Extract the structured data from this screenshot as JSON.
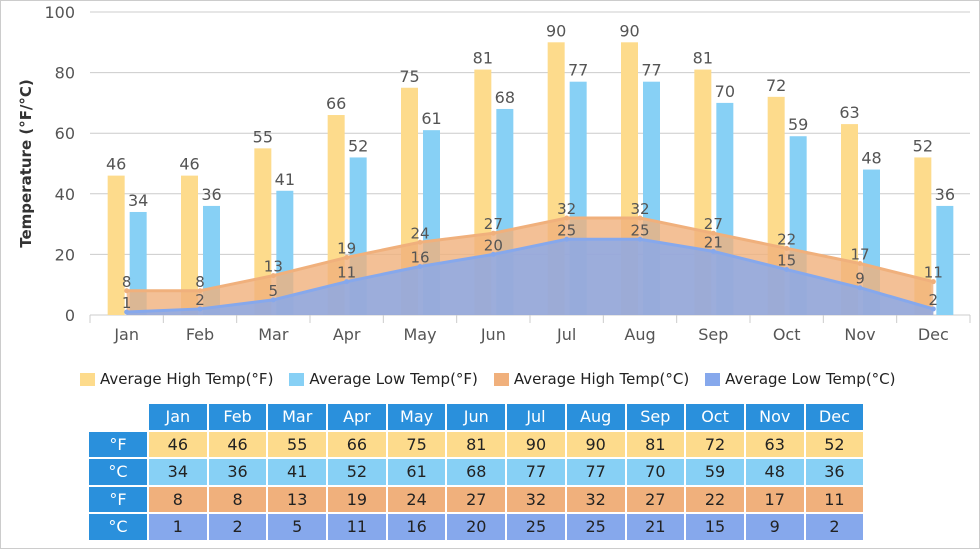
{
  "chart_data": {
    "type": "bar",
    "ylabel": "Temperature (°F/°C)",
    "ylim": [
      0,
      100
    ],
    "yticks": [
      0,
      20,
      40,
      60,
      80,
      100
    ],
    "grid": true,
    "legend_position": "bottom",
    "categories": [
      "Jan",
      "Feb",
      "Mar",
      "Apr",
      "May",
      "Jun",
      "Jul",
      "Aug",
      "Sep",
      "Oct",
      "Nov",
      "Dec"
    ],
    "series": [
      {
        "name": "Average High Temp(°F)",
        "kind": "bar",
        "color": "#fddb8c",
        "values": [
          46,
          46,
          55,
          66,
          75,
          81,
          90,
          90,
          81,
          72,
          63,
          52
        ]
      },
      {
        "name": "Average Low Temp(°F)",
        "kind": "bar",
        "color": "#87d0f5",
        "values": [
          34,
          36,
          41,
          52,
          61,
          68,
          77,
          77,
          70,
          59,
          48,
          36
        ]
      },
      {
        "name": "Average High Temp(°C)",
        "kind": "area",
        "color": "#f0b07c",
        "values": [
          8,
          8,
          13,
          19,
          24,
          27,
          32,
          32,
          27,
          22,
          17,
          11
        ]
      },
      {
        "name": "Average Low Temp(°C)",
        "kind": "area",
        "color": "#86a8ec",
        "values": [
          1,
          2,
          5,
          11,
          16,
          20,
          25,
          25,
          21,
          15,
          9,
          2
        ]
      }
    ]
  },
  "table": {
    "header_color": "#2a90dc",
    "row_labels": [
      "°F",
      "°C",
      "°F",
      "°C"
    ]
  }
}
